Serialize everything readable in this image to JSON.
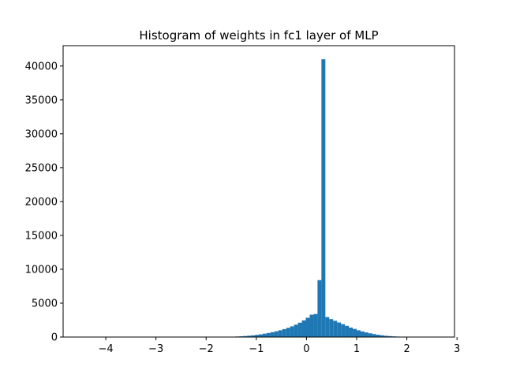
{
  "chart_data": {
    "type": "bar",
    "title": "Histogram of weights in fc1 layer of MLP",
    "xlabel": "",
    "ylabel": "",
    "xlim": [
      -4.85,
      2.95
    ],
    "ylim": [
      0,
      43000
    ],
    "grid": false,
    "x_ticks": [
      -4,
      -3,
      -2,
      -1,
      0,
      1,
      2,
      3
    ],
    "x_tick_labels": [
      "−4",
      "−3",
      "−2",
      "−1",
      "0",
      "1",
      "2",
      "3"
    ],
    "y_ticks": [
      0,
      5000,
      10000,
      15000,
      20000,
      25000,
      30000,
      35000,
      40000
    ],
    "y_tick_labels": [
      "0",
      "5000",
      "10000",
      "15000",
      "20000",
      "25000",
      "30000",
      "35000",
      "40000"
    ],
    "color": "#1f77b4",
    "bin_start": -4.85,
    "bin_width": 0.078,
    "values": [
      0,
      0,
      0,
      0,
      0,
      0,
      0,
      0,
      0,
      0,
      0,
      0,
      0,
      0,
      0,
      0,
      0,
      0,
      0,
      0,
      0,
      0,
      0,
      0,
      0,
      0,
      0,
      0,
      0,
      0,
      0,
      0,
      0,
      0,
      0,
      0,
      0,
      0,
      0,
      0,
      20,
      30,
      40,
      60,
      80,
      110,
      150,
      200,
      250,
      320,
      400,
      500,
      600,
      720,
      850,
      1000,
      1170,
      1360,
      1580,
      1830,
      2120,
      2460,
      2850,
      3300,
      3400,
      8400,
      41000,
      2950,
      2650,
      2400,
      2150,
      1900,
      1650,
      1400,
      1200,
      1000,
      830,
      680,
      550,
      440,
      340,
      260,
      190,
      140,
      100,
      70,
      50,
      30,
      20,
      15,
      10,
      8,
      5,
      3,
      2,
      0,
      0,
      0,
      0,
      0
    ]
  }
}
